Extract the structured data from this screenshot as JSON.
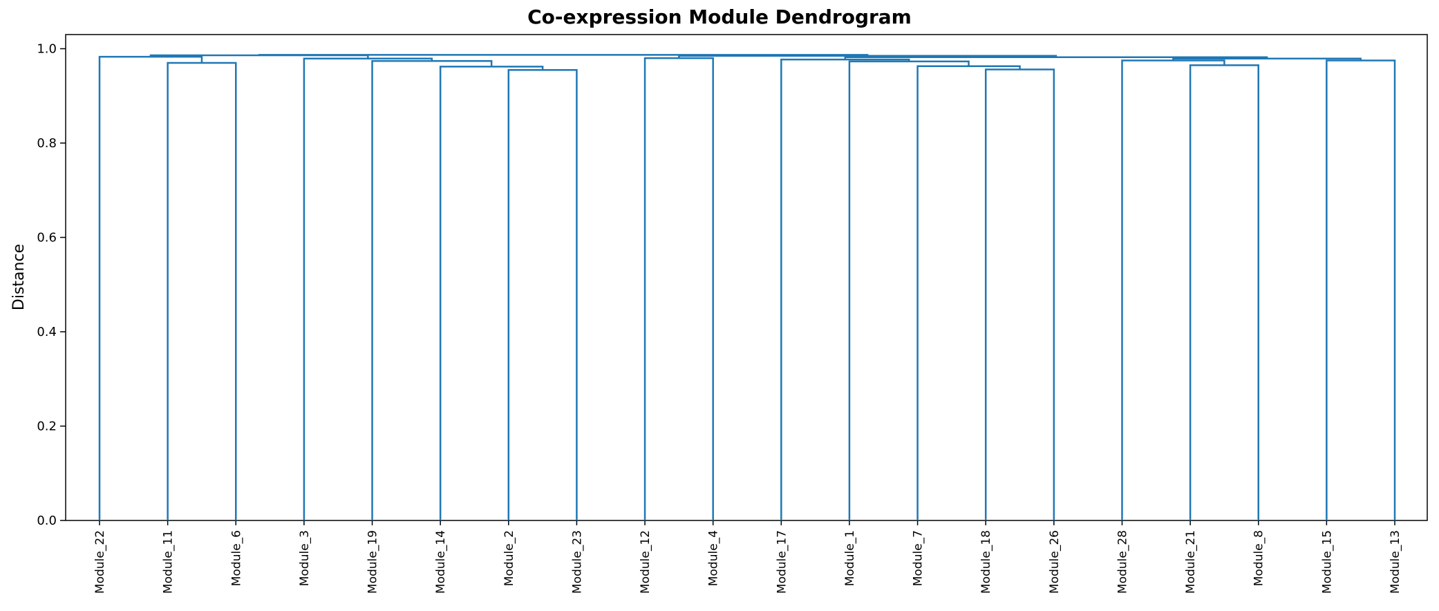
{
  "chart_data": {
    "type": "dendrogram",
    "title": "Co-expression Module Dendrogram",
    "xlabel": "",
    "ylabel": "Distance",
    "ylim": [
      0,
      1.03
    ],
    "yticks": [
      "0.0",
      "0.2",
      "0.4",
      "0.6",
      "0.8",
      "1.0"
    ],
    "grid": false,
    "color": "#1f77b4",
    "leaves": [
      "Module_22",
      "Module_11",
      "Module_6",
      "Module_3",
      "Module_19",
      "Module_14",
      "Module_2",
      "Module_23",
      "Module_12",
      "Module_4",
      "Module_17",
      "Module_1",
      "Module_7",
      "Module_18",
      "Module_26",
      "Module_28",
      "Module_21",
      "Module_8",
      "Module_15",
      "Module_13"
    ],
    "merges": [
      {
        "id": "m1",
        "left": "Module_2",
        "right": "Module_23",
        "height": 0.955
      },
      {
        "id": "m2",
        "left": "Module_18",
        "right": "Module_26",
        "height": 0.956
      },
      {
        "id": "m3",
        "left": "Module_14",
        "right": "m1",
        "height": 0.962
      },
      {
        "id": "m4",
        "left": "Module_7",
        "right": "m2",
        "height": 0.963
      },
      {
        "id": "m5",
        "left": "Module_21",
        "right": "Module_8",
        "height": 0.965
      },
      {
        "id": "m6",
        "left": "Module_11",
        "right": "Module_6",
        "height": 0.97
      },
      {
        "id": "m7",
        "left": "Module_1",
        "right": "m4",
        "height": 0.973
      },
      {
        "id": "m8",
        "left": "Module_19",
        "right": "m3",
        "height": 0.974
      },
      {
        "id": "m9",
        "left": "Module_15",
        "right": "Module_13",
        "height": 0.975
      },
      {
        "id": "m10",
        "left": "Module_28",
        "right": "m5",
        "height": 0.975
      },
      {
        "id": "m11",
        "left": "Module_17",
        "right": "m7",
        "height": 0.977
      },
      {
        "id": "m12",
        "left": "Module_3",
        "right": "m8",
        "height": 0.979
      },
      {
        "id": "m13",
        "left": "m10",
        "right": "m9",
        "height": 0.979
      },
      {
        "id": "m14",
        "left": "Module_12",
        "right": "Module_4",
        "height": 0.98
      },
      {
        "id": "m15",
        "left": "m11",
        "right": "m13",
        "height": 0.982
      },
      {
        "id": "m16",
        "left": "Module_22",
        "right": "m6",
        "height": 0.983
      },
      {
        "id": "m17",
        "left": "m14",
        "right": "m15",
        "height": 0.985
      },
      {
        "id": "m18",
        "left": "m16",
        "right": "m12",
        "height": 0.986
      },
      {
        "id": "m19",
        "left": "m18",
        "right": "m17",
        "height": 0.987
      }
    ]
  }
}
